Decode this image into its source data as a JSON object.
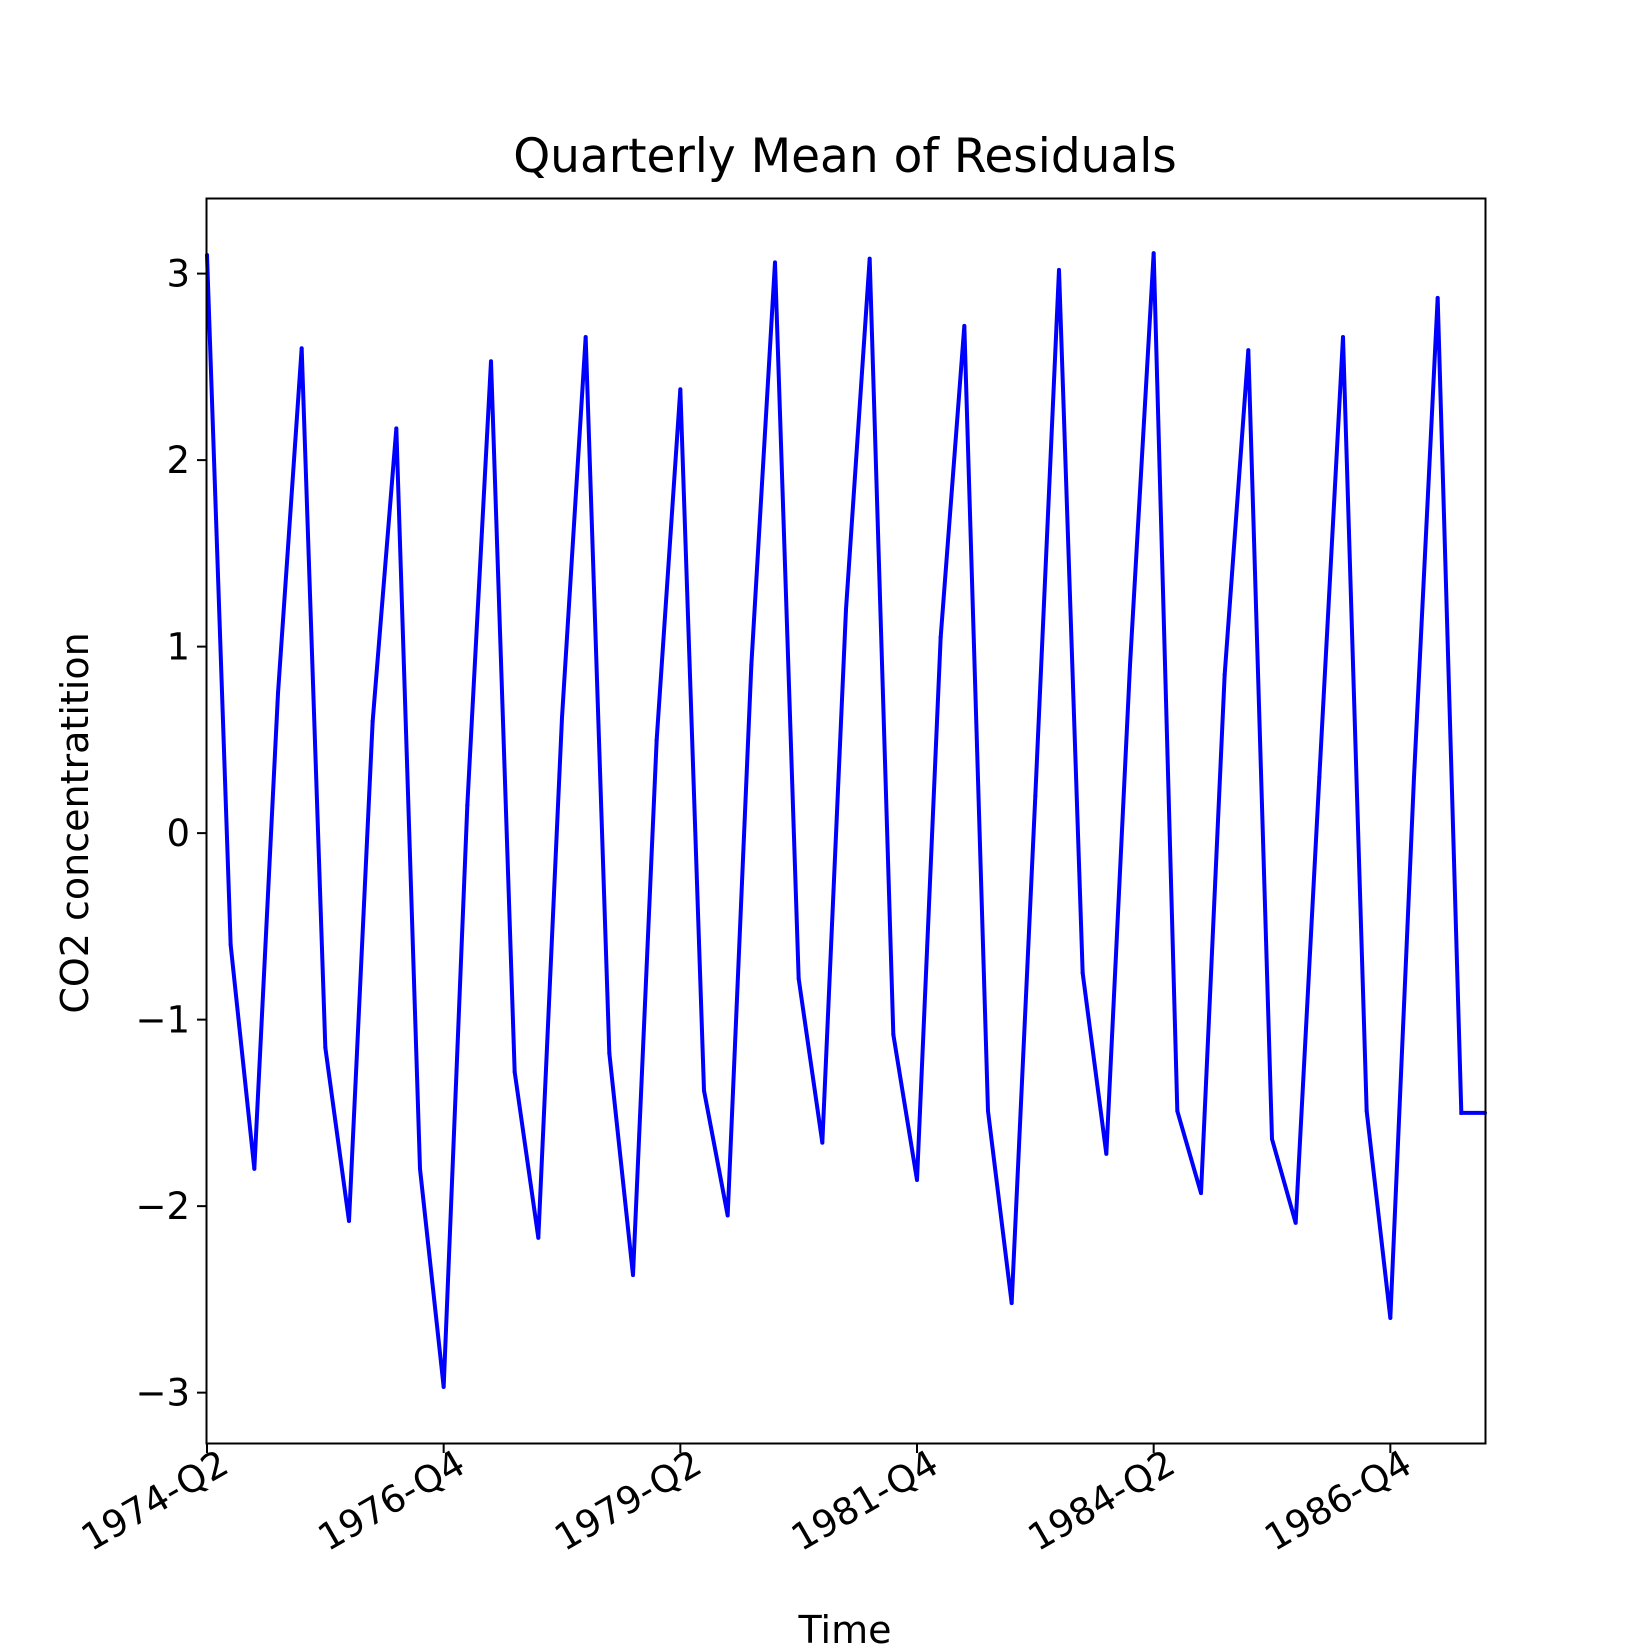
{
  "chart_data": {
    "type": "line",
    "title": "Quarterly Mean of Residuals",
    "xlabel": "Time",
    "ylabel": "CO2 concentratition",
    "ylim": [
      -3.27,
      3.4
    ],
    "yticks": [
      {
        "value": 3,
        "label": "3"
      },
      {
        "value": 2,
        "label": "2"
      },
      {
        "value": 1,
        "label": "1"
      },
      {
        "value": 0,
        "label": "0"
      },
      {
        "value": -1,
        "label": "−1"
      },
      {
        "value": -2,
        "label": "−2"
      },
      {
        "value": -3,
        "label": "−3"
      }
    ],
    "xticks": [
      "1974-Q2",
      "1976-Q4",
      "1979-Q2",
      "1981-Q4",
      "1984-Q2",
      "1986-Q4"
    ],
    "grid": false,
    "series": [
      {
        "color": "#0000ff",
        "x": [
          "1974-Q2",
          "1974-Q3",
          "1974-Q4",
          "1975-Q1",
          "1975-Q2",
          "1975-Q3",
          "1975-Q4",
          "1976-Q1",
          "1976-Q2",
          "1976-Q3",
          "1976-Q4",
          "1977-Q1",
          "1977-Q2",
          "1977-Q3",
          "1977-Q4",
          "1978-Q1",
          "1978-Q2",
          "1978-Q3",
          "1978-Q4",
          "1979-Q1",
          "1979-Q2",
          "1979-Q3",
          "1979-Q4",
          "1980-Q1",
          "1980-Q2",
          "1980-Q3",
          "1980-Q4",
          "1981-Q1",
          "1981-Q2",
          "1981-Q3",
          "1981-Q4",
          "1982-Q1",
          "1982-Q2",
          "1982-Q3",
          "1982-Q4",
          "1983-Q1",
          "1983-Q2",
          "1983-Q3",
          "1983-Q4",
          "1984-Q1",
          "1984-Q2",
          "1984-Q3",
          "1984-Q4",
          "1985-Q1",
          "1985-Q2",
          "1985-Q3",
          "1985-Q4",
          "1986-Q1",
          "1986-Q2",
          "1986-Q3",
          "1986-Q4",
          "1987-Q1",
          "1987-Q2",
          "1987-Q3",
          "1987-Q4"
        ],
        "values": [
          3.1,
          -0.6,
          -1.8,
          0.75,
          2.6,
          -1.15,
          -2.08,
          0.6,
          2.17,
          -1.8,
          -2.97,
          0.15,
          2.53,
          -1.28,
          -2.17,
          0.62,
          2.66,
          -1.18,
          -2.37,
          0.5,
          2.38,
          -1.38,
          -2.05,
          0.9,
          3.06,
          -0.78,
          -1.66,
          1.2,
          3.08,
          -1.08,
          -1.86,
          1.05,
          2.72,
          -1.49,
          -2.52,
          0.2,
          3.02,
          -0.75,
          -1.72,
          0.9,
          3.11,
          -1.49,
          -1.93,
          0.85,
          2.59,
          -1.64,
          -2.09,
          0.3,
          2.66,
          -1.49,
          -2.6,
          0.3,
          2.87,
          -1.5,
          -1.5
        ]
      }
    ]
  }
}
